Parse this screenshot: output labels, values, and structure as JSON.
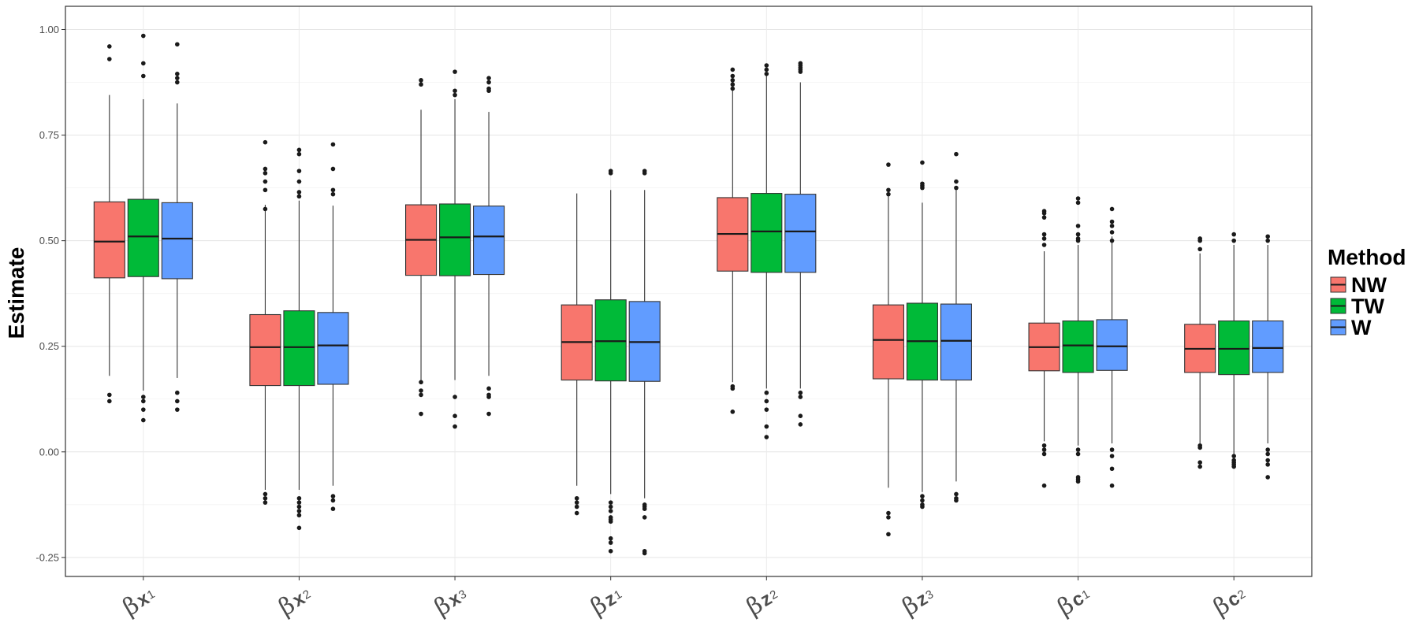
{
  "chart_data": {
    "type": "boxplot",
    "title": "",
    "xlabel": "",
    "ylabel": "Estimate",
    "ylim": [
      -0.295,
      1.055
    ],
    "yticks": [
      -0.25,
      0.0,
      0.25,
      0.5,
      0.75,
      1.0
    ],
    "ytick_labels": [
      "-0.25",
      "0.00",
      "0.25",
      "0.50",
      "0.75",
      "1.00"
    ],
    "grid": true,
    "legend": {
      "title": "Method",
      "position": "right"
    },
    "categories": [
      {
        "beta": "β",
        "var": "x",
        "sub": "1"
      },
      {
        "beta": "β",
        "var": "x",
        "sub": "2"
      },
      {
        "beta": "β",
        "var": "x",
        "sub": "3"
      },
      {
        "beta": "β",
        "var": "z",
        "sub": "1"
      },
      {
        "beta": "β",
        "var": "z",
        "sub": "2"
      },
      {
        "beta": "β",
        "var": "z",
        "sub": "3"
      },
      {
        "beta": "β",
        "var": "c",
        "sub": "1"
      },
      {
        "beta": "β",
        "var": "c",
        "sub": "2"
      }
    ],
    "series": [
      {
        "name": "NW",
        "color": "#F8766D",
        "boxes": [
          {
            "q1": 0.412,
            "median": 0.498,
            "q3": 0.592,
            "whisker_low": 0.18,
            "whisker_high": 0.845,
            "outliers": [
              0.96,
              0.93,
              0.135,
              0.12
            ]
          },
          {
            "q1": 0.157,
            "median": 0.248,
            "q3": 0.325,
            "whisker_low": -0.09,
            "whisker_high": 0.585,
            "outliers": [
              0.733,
              0.67,
              0.66,
              0.64,
              0.62,
              0.575,
              -0.1,
              -0.11,
              -0.12
            ]
          },
          {
            "q1": 0.418,
            "median": 0.502,
            "q3": 0.585,
            "whisker_low": 0.17,
            "whisker_high": 0.81,
            "outliers": [
              0.88,
              0.87,
              0.165,
              0.145,
              0.135,
              0.09
            ]
          },
          {
            "q1": 0.17,
            "median": 0.26,
            "q3": 0.348,
            "whisker_low": -0.08,
            "whisker_high": 0.612,
            "outliers": [
              -0.11,
              -0.12,
              -0.13,
              -0.145
            ]
          },
          {
            "q1": 0.428,
            "median": 0.516,
            "q3": 0.602,
            "whisker_low": 0.165,
            "whisker_high": 0.86,
            "outliers": [
              0.905,
              0.89,
              0.88,
              0.87,
              0.86,
              0.155,
              0.15,
              0.095
            ]
          },
          {
            "q1": 0.173,
            "median": 0.265,
            "q3": 0.348,
            "whisker_low": -0.085,
            "whisker_high": 0.605,
            "outliers": [
              0.68,
              0.62,
              0.61,
              -0.145,
              -0.155,
              -0.195
            ]
          },
          {
            "q1": 0.192,
            "median": 0.248,
            "q3": 0.305,
            "whisker_low": 0.025,
            "whisker_high": 0.475,
            "outliers": [
              0.57,
              0.565,
              0.555,
              0.515,
              0.505,
              0.49,
              0.015,
              0.005,
              -0.005,
              -0.08
            ]
          },
          {
            "q1": 0.188,
            "median": 0.244,
            "q3": 0.302,
            "whisker_low": 0.02,
            "whisker_high": 0.47,
            "outliers": [
              0.505,
              0.5,
              0.48,
              0.015,
              0.01,
              -0.025,
              -0.035
            ]
          }
        ]
      },
      {
        "name": "TW",
        "color": "#00BA38",
        "boxes": [
          {
            "q1": 0.415,
            "median": 0.51,
            "q3": 0.598,
            "whisker_low": 0.145,
            "whisker_high": 0.835,
            "outliers": [
              0.985,
              0.92,
              0.89,
              0.13,
              0.12,
              0.1,
              0.075
            ]
          },
          {
            "q1": 0.157,
            "median": 0.248,
            "q3": 0.334,
            "whisker_low": -0.09,
            "whisker_high": 0.595,
            "outliers": [
              0.715,
              0.705,
              0.665,
              0.64,
              0.615,
              0.605,
              -0.11,
              -0.12,
              -0.13,
              -0.14,
              -0.15,
              -0.18
            ]
          },
          {
            "q1": 0.417,
            "median": 0.508,
            "q3": 0.587,
            "whisker_low": 0.17,
            "whisker_high": 0.835,
            "outliers": [
              0.9,
              0.855,
              0.845,
              0.13,
              0.085,
              0.06
            ]
          },
          {
            "q1": 0.168,
            "median": 0.262,
            "q3": 0.36,
            "whisker_low": -0.1,
            "whisker_high": 0.62,
            "outliers": [
              0.665,
              0.66,
              -0.12,
              -0.13,
              -0.14,
              -0.155,
              -0.16,
              -0.165,
              -0.205,
              -0.215,
              -0.235
            ]
          },
          {
            "q1": 0.425,
            "median": 0.522,
            "q3": 0.612,
            "whisker_low": 0.15,
            "whisker_high": 0.89,
            "outliers": [
              0.915,
              0.905,
              0.895,
              0.14,
              0.12,
              0.1,
              0.06,
              0.035
            ]
          },
          {
            "q1": 0.17,
            "median": 0.262,
            "q3": 0.352,
            "whisker_low": -0.095,
            "whisker_high": 0.59,
            "outliers": [
              0.685,
              0.635,
              0.63,
              0.625,
              -0.105,
              -0.115,
              -0.125,
              -0.13
            ]
          },
          {
            "q1": 0.188,
            "median": 0.252,
            "q3": 0.31,
            "whisker_low": 0.015,
            "whisker_high": 0.49,
            "outliers": [
              0.6,
              0.59,
              0.535,
              0.515,
              0.505,
              0.5,
              0.005,
              -0.005,
              -0.06,
              -0.065,
              -0.07
            ]
          },
          {
            "q1": 0.183,
            "median": 0.244,
            "q3": 0.31,
            "whisker_low": -0.005,
            "whisker_high": 0.49,
            "outliers": [
              0.515,
              0.5,
              -0.01,
              -0.02,
              -0.025,
              -0.03,
              -0.035
            ]
          }
        ]
      },
      {
        "name": "W",
        "color": "#619CFF",
        "boxes": [
          {
            "q1": 0.41,
            "median": 0.505,
            "q3": 0.59,
            "whisker_low": 0.175,
            "whisker_high": 0.825,
            "outliers": [
              0.965,
              0.895,
              0.885,
              0.875,
              0.14,
              0.12,
              0.1
            ]
          },
          {
            "q1": 0.16,
            "median": 0.252,
            "q3": 0.33,
            "whisker_low": -0.08,
            "whisker_high": 0.583,
            "outliers": [
              0.728,
              0.67,
              0.62,
              0.61,
              -0.105,
              -0.115,
              -0.135
            ]
          },
          {
            "q1": 0.42,
            "median": 0.51,
            "q3": 0.582,
            "whisker_low": 0.18,
            "whisker_high": 0.805,
            "outliers": [
              0.885,
              0.875,
              0.86,
              0.855,
              0.15,
              0.135,
              0.13,
              0.09
            ]
          },
          {
            "q1": 0.167,
            "median": 0.26,
            "q3": 0.356,
            "whisker_low": -0.11,
            "whisker_high": 0.62,
            "outliers": [
              0.665,
              0.66,
              -0.125,
              -0.13,
              -0.135,
              -0.155,
              -0.235,
              -0.24
            ]
          },
          {
            "q1": 0.425,
            "median": 0.522,
            "q3": 0.61,
            "whisker_low": 0.15,
            "whisker_high": 0.875,
            "outliers": [
              0.92,
              0.915,
              0.91,
              0.905,
              0.9,
              0.14,
              0.13,
              0.085,
              0.065
            ]
          },
          {
            "q1": 0.17,
            "median": 0.263,
            "q3": 0.35,
            "whisker_low": -0.07,
            "whisker_high": 0.62,
            "outliers": [
              0.705,
              0.64,
              0.625,
              -0.1,
              -0.11,
              -0.115
            ]
          },
          {
            "q1": 0.193,
            "median": 0.25,
            "q3": 0.313,
            "whisker_low": 0.02,
            "whisker_high": 0.51,
            "outliers": [
              0.575,
              0.545,
              0.535,
              0.52,
              0.5,
              0.005,
              -0.01,
              -0.04,
              -0.08
            ]
          },
          {
            "q1": 0.188,
            "median": 0.246,
            "q3": 0.31,
            "whisker_low": 0.02,
            "whisker_high": 0.49,
            "outliers": [
              0.51,
              0.5,
              0.005,
              -0.005,
              -0.02,
              -0.03,
              -0.06
            ]
          }
        ]
      }
    ]
  }
}
